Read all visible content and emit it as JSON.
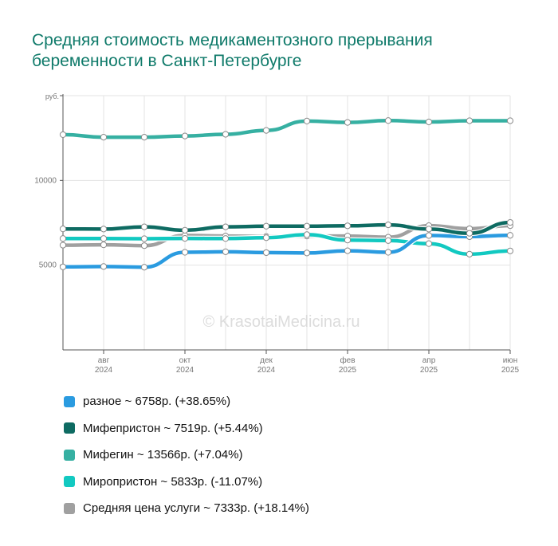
{
  "title": "Средняя стоимость медикаментозного прерывания беременности в Санкт-Петербурге",
  "watermark": "© KrasotaiMedicina.ru",
  "legend": [
    {
      "label": "разное ~ 6758р. (+38.65%)",
      "color": "#2a9be0"
    },
    {
      "label": "Мифепристон ~ 7519р. (+5.44%)",
      "color": "#0e6b62"
    },
    {
      "label": "Мифегин ~ 13566р. (+7.04%)",
      "color": "#36b0a2"
    },
    {
      "label": "Миропристон ~ 5833р. (-11.07%)",
      "color": "#12c9c1"
    },
    {
      "label": "Средняя цена услуги ~ 7333р. (+18.14%)",
      "color": "#a0a0a0"
    }
  ],
  "chart_data": {
    "type": "line",
    "ylabel": "руб.",
    "ylim": [
      0,
      15000
    ],
    "yticks": [
      {
        "value": 5000,
        "label": "5000"
      },
      {
        "value": 10000,
        "label": "10000"
      }
    ],
    "xticks": [
      {
        "index": 1,
        "month": "авг",
        "year": "2024"
      },
      {
        "index": 3,
        "month": "окт",
        "year": "2024"
      },
      {
        "index": 5,
        "month": "дек",
        "year": "2024"
      },
      {
        "index": 7,
        "month": "фев",
        "year": "2025"
      },
      {
        "index": 9,
        "month": "апр",
        "year": "2025"
      },
      {
        "index": 11,
        "month": "июн",
        "year": "2025"
      }
    ],
    "x": [
      "2024-07",
      "2024-08",
      "2024-09",
      "2024-10",
      "2024-11",
      "2024-12",
      "2025-01",
      "2025-02",
      "2025-03",
      "2025-04",
      "2025-05",
      "2025-06"
    ],
    "grid": true,
    "series": [
      {
        "name": "Мифегин",
        "color": "#36b0a2",
        "values": [
          12700,
          12550,
          12550,
          12620,
          12720,
          12950,
          13500,
          13420,
          13530,
          13450,
          13520,
          13520
        ]
      },
      {
        "name": "Средняя цена услуги",
        "color": "#a0a0a0",
        "values": [
          6180,
          6200,
          6150,
          6750,
          6720,
          6690,
          6720,
          6720,
          6650,
          7330,
          7150,
          7330
        ]
      },
      {
        "name": "Миропристон",
        "color": "#12c9c1",
        "values": [
          6570,
          6570,
          6560,
          6580,
          6570,
          6620,
          6800,
          6480,
          6450,
          6270,
          5650,
          5840
        ]
      },
      {
        "name": "разное",
        "color": "#2a9be0",
        "values": [
          4900,
          4920,
          4880,
          5760,
          5790,
          5740,
          5720,
          5850,
          5760,
          6750,
          6680,
          6760
        ]
      },
      {
        "name": "Мифепристон",
        "color": "#0e6b62",
        "values": [
          7140,
          7130,
          7260,
          7060,
          7260,
          7300,
          7300,
          7320,
          7380,
          7130,
          6880,
          7520
        ]
      }
    ]
  }
}
